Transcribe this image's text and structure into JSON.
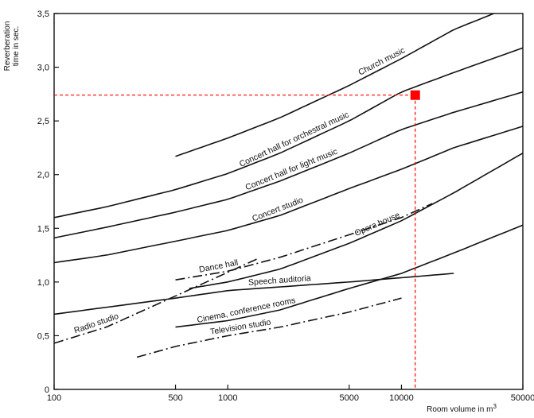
{
  "chart_data": {
    "type": "line",
    "title": "",
    "xlabel": "Room volume in m",
    "xlabel_superscript": "3",
    "ylabel": [
      "Reverberation",
      "time in sec."
    ],
    "xscale": "log",
    "xlim": [
      100,
      50000
    ],
    "ylim": [
      0,
      3.5
    ],
    "grid": false,
    "x_ticks": [
      {
        "value": 100,
        "label": "100"
      },
      {
        "value": 500,
        "label": "500"
      },
      {
        "value": 1000,
        "label": "1000"
      },
      {
        "value": 5000,
        "label": "5000"
      },
      {
        "value": 10000,
        "label": "10000"
      },
      {
        "value": 50000,
        "label": "50000"
      }
    ],
    "y_ticks": [
      {
        "value": 0,
        "label": "0"
      },
      {
        "value": 0.5,
        "label": "0,5"
      },
      {
        "value": 1.0,
        "label": "1,0"
      },
      {
        "value": 1.5,
        "label": "1,5"
      },
      {
        "value": 2.0,
        "label": "2,0"
      },
      {
        "value": 2.5,
        "label": "2,5"
      },
      {
        "value": 3.0,
        "label": "3,0"
      },
      {
        "value": 3.5,
        "label": "3,5"
      }
    ],
    "series": [
      {
        "name": "Church music",
        "dash": "solid",
        "label_at": 8000,
        "points": [
          [
            500,
            2.17
          ],
          [
            1000,
            2.34
          ],
          [
            2000,
            2.53
          ],
          [
            5000,
            2.83
          ],
          [
            10000,
            3.08
          ],
          [
            20000,
            3.35
          ],
          [
            34000,
            3.5
          ]
        ]
      },
      {
        "name": "Concert hall for orchestral music",
        "dash": "solid",
        "label_at": 2500,
        "points": [
          [
            100,
            1.6
          ],
          [
            200,
            1.7
          ],
          [
            500,
            1.86
          ],
          [
            1000,
            2.01
          ],
          [
            2000,
            2.2
          ],
          [
            5000,
            2.5
          ],
          [
            10000,
            2.77
          ],
          [
            20000,
            2.95
          ],
          [
            50000,
            3.18
          ]
        ]
      },
      {
        "name": "Concert hall for light music",
        "dash": "solid",
        "label_at": 2400,
        "points": [
          [
            100,
            1.41
          ],
          [
            200,
            1.51
          ],
          [
            500,
            1.65
          ],
          [
            1000,
            1.77
          ],
          [
            2000,
            1.94
          ],
          [
            5000,
            2.2
          ],
          [
            10000,
            2.42
          ],
          [
            20000,
            2.58
          ],
          [
            50000,
            2.77
          ]
        ]
      },
      {
        "name": "Concert studio",
        "dash": "solid",
        "label_at": 2000,
        "points": [
          [
            100,
            1.18
          ],
          [
            200,
            1.25
          ],
          [
            500,
            1.38
          ],
          [
            1000,
            1.48
          ],
          [
            2000,
            1.62
          ],
          [
            5000,
            1.87
          ],
          [
            10000,
            2.05
          ],
          [
            20000,
            2.25
          ],
          [
            50000,
            2.45
          ]
        ]
      },
      {
        "name": "Opera house",
        "dash": "solid",
        "label_at": 7500,
        "points": [
          [
            600,
            0.94
          ],
          [
            1000,
            1.0
          ],
          [
            2000,
            1.12
          ],
          [
            5000,
            1.36
          ],
          [
            10000,
            1.57
          ],
          [
            20000,
            1.83
          ],
          [
            50000,
            2.2
          ]
        ]
      },
      {
        "name": "Speech auditoria",
        "dash": "solid",
        "label_at": 2000,
        "points": [
          [
            100,
            0.7
          ],
          [
            500,
            0.85
          ],
          [
            1000,
            0.92
          ],
          [
            5000,
            1.0
          ],
          [
            10000,
            1.04
          ],
          [
            20000,
            1.08
          ]
        ]
      },
      {
        "name": "Cinema, conference rooms",
        "dash": "solid",
        "label_at": 1300,
        "points": [
          [
            500,
            0.58
          ],
          [
            1000,
            0.64
          ],
          [
            2000,
            0.74
          ],
          [
            5000,
            0.94
          ],
          [
            10000,
            1.08
          ],
          [
            20000,
            1.27
          ],
          [
            50000,
            1.53
          ]
        ]
      },
      {
        "name": "Dance hall",
        "dash": "dashdot",
        "label_at": 900,
        "points": [
          [
            500,
            1.02
          ],
          [
            1000,
            1.1
          ],
          [
            2000,
            1.23
          ],
          [
            5000,
            1.44
          ],
          [
            10000,
            1.6
          ],
          [
            15000,
            1.73
          ]
        ]
      },
      {
        "name": "Radio studio",
        "dash": "dashdot",
        "label_at": 180,
        "points": [
          [
            100,
            0.43
          ],
          [
            200,
            0.58
          ],
          [
            500,
            0.87
          ],
          [
            1000,
            1.09
          ],
          [
            1500,
            1.22
          ]
        ]
      },
      {
        "name": "Television studio",
        "dash": "dashdot",
        "label_at": 1200,
        "points": [
          [
            300,
            0.3
          ],
          [
            500,
            0.4
          ],
          [
            1000,
            0.5
          ],
          [
            2000,
            0.58
          ],
          [
            5000,
            0.72
          ],
          [
            10000,
            0.85
          ]
        ]
      }
    ],
    "marker": {
      "x": 12000,
      "y": 2.74,
      "color": "#ff0000"
    },
    "marker_guides": {
      "color": "#ff0000",
      "style": "dashed"
    }
  }
}
